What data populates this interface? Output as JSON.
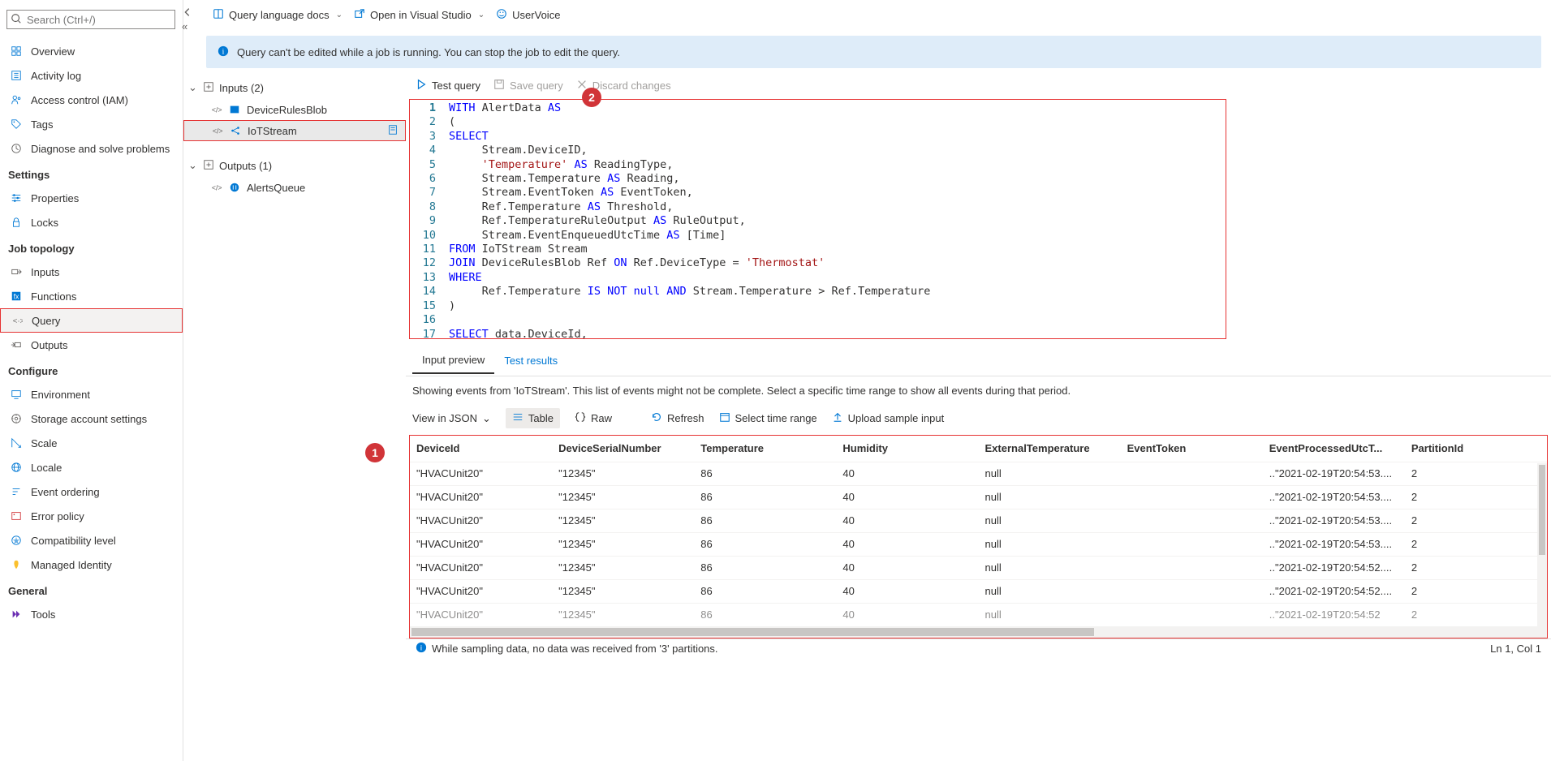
{
  "search": {
    "placeholder": "Search (Ctrl+/)"
  },
  "sidebar": {
    "top": [
      {
        "label": "Overview",
        "icon": "overview"
      },
      {
        "label": "Activity log",
        "icon": "activity"
      },
      {
        "label": "Access control (IAM)",
        "icon": "iam"
      },
      {
        "label": "Tags",
        "icon": "tags"
      },
      {
        "label": "Diagnose and solve problems",
        "icon": "diagnose"
      }
    ],
    "sections": [
      {
        "title": "Settings",
        "items": [
          {
            "label": "Properties",
            "icon": "properties"
          },
          {
            "label": "Locks",
            "icon": "locks"
          }
        ]
      },
      {
        "title": "Job topology",
        "items": [
          {
            "label": "Inputs",
            "icon": "inputs"
          },
          {
            "label": "Functions",
            "icon": "functions"
          },
          {
            "label": "Query",
            "icon": "query",
            "selected": true
          },
          {
            "label": "Outputs",
            "icon": "outputs"
          }
        ]
      },
      {
        "title": "Configure",
        "items": [
          {
            "label": "Environment",
            "icon": "env"
          },
          {
            "label": "Storage account settings",
            "icon": "storage"
          },
          {
            "label": "Scale",
            "icon": "scale"
          },
          {
            "label": "Locale",
            "icon": "locale"
          },
          {
            "label": "Event ordering",
            "icon": "eventorder"
          },
          {
            "label": "Error policy",
            "icon": "errorpolicy"
          },
          {
            "label": "Compatibility level",
            "icon": "compat"
          },
          {
            "label": "Managed Identity",
            "icon": "identity"
          }
        ]
      },
      {
        "title": "General",
        "items": [
          {
            "label": "Tools",
            "icon": "tools"
          }
        ]
      }
    ]
  },
  "topbar": {
    "docs": "Query language docs",
    "openvs": "Open in Visual Studio",
    "uservoice": "UserVoice"
  },
  "banner": {
    "text": "Query can't be edited while a job is running. You can stop the job to edit the query."
  },
  "tree": {
    "inputs_header": "Inputs (2)",
    "inputs": [
      {
        "label": "DeviceRulesBlob",
        "type": "blob"
      },
      {
        "label": "IoTStream",
        "type": "iot",
        "selected": true
      }
    ],
    "outputs_header": "Outputs (1)",
    "outputs": [
      {
        "label": "AlertsQueue",
        "type": "queue"
      }
    ]
  },
  "callouts": {
    "one": "1",
    "two": "2"
  },
  "editor": {
    "test": "Test query",
    "save": "Save query",
    "discard": "Discard changes",
    "line_count": 17,
    "code_lines": [
      {
        "n": 1,
        "html": "<span class='kw'>WITH</span> AlertData <span class='kw'>AS</span>"
      },
      {
        "n": 2,
        "html": "("
      },
      {
        "n": 3,
        "html": "<span class='kw'>SELECT</span>"
      },
      {
        "n": 4,
        "html": "     Stream.DeviceID,"
      },
      {
        "n": 5,
        "html": "     <span class='str'>'Temperature'</span> <span class='kw'>AS</span> ReadingType,"
      },
      {
        "n": 6,
        "html": "     Stream.Temperature <span class='kw'>AS</span> Reading,"
      },
      {
        "n": 7,
        "html": "     Stream.EventToken <span class='kw'>AS</span> EventToken,"
      },
      {
        "n": 8,
        "html": "     Ref.Temperature <span class='kw'>AS</span> Threshold,"
      },
      {
        "n": 9,
        "html": "     Ref.TemperatureRuleOutput <span class='kw'>AS</span> RuleOutput,"
      },
      {
        "n": 10,
        "html": "     Stream.EventEnqueuedUtcTime <span class='kw'>AS</span> [Time]"
      },
      {
        "n": 11,
        "html": "<span class='kw'>FROM</span> IoTStream Stream"
      },
      {
        "n": 12,
        "html": "<span class='kw'>JOIN</span> DeviceRulesBlob Ref <span class='kw'>ON</span> Ref.DeviceType = <span class='str'>'Thermostat'</span>"
      },
      {
        "n": 13,
        "html": "<span class='kw'>WHERE</span>"
      },
      {
        "n": 14,
        "html": "     Ref.Temperature <span class='kw'>IS NOT</span> <span class='kw'>null</span> <span class='kw'>AND</span> Stream.Temperature &gt; Ref.Temperature"
      },
      {
        "n": 15,
        "html": ")"
      },
      {
        "n": 16,
        "html": ""
      },
      {
        "n": 17,
        "html": "<span class='kw'>SELECT</span> data.DeviceId,"
      }
    ]
  },
  "tabs": {
    "input_preview": "Input preview",
    "test_results": "Test results"
  },
  "preview": {
    "message": "Showing events from 'IoTStream'. This list of events might not be complete. Select a specific time range to show all events during that period.",
    "view_json": "View in JSON",
    "table": "Table",
    "raw": "Raw",
    "refresh": "Refresh",
    "select_time": "Select time range",
    "upload": "Upload sample input",
    "columns": [
      "DeviceId",
      "DeviceSerialNumber",
      "Temperature",
      "Humidity",
      "ExternalTemperature",
      "EventToken",
      "EventProcessedUtcT...",
      "PartitionId"
    ],
    "col_widths": [
      "130",
      "130",
      "130",
      "130",
      "130",
      "130",
      "130",
      "90"
    ],
    "rows": [
      [
        "\"HVACUnit20\"",
        "\"12345\"",
        "86",
        "40",
        "null",
        "",
        "\"2021-02-19T20:54:53....",
        "2"
      ],
      [
        "\"HVACUnit20\"",
        "\"12345\"",
        "86",
        "40",
        "null",
        "",
        "\"2021-02-19T20:54:53....",
        "2"
      ],
      [
        "\"HVACUnit20\"",
        "\"12345\"",
        "86",
        "40",
        "null",
        "",
        "\"2021-02-19T20:54:53....",
        "2"
      ],
      [
        "\"HVACUnit20\"",
        "\"12345\"",
        "86",
        "40",
        "null",
        "",
        "\"2021-02-19T20:54:53....",
        "2"
      ],
      [
        "\"HVACUnit20\"",
        "\"12345\"",
        "86",
        "40",
        "null",
        "",
        "\"2021-02-19T20:54:52....",
        "2"
      ],
      [
        "\"HVACUnit20\"",
        "\"12345\"",
        "86",
        "40",
        "null",
        "",
        "\"2021-02-19T20:54:52....",
        "2"
      ],
      [
        "\"HVACUnit20\"",
        "\"12345\"",
        "86",
        "40",
        "null",
        "",
        "\"2021-02-19T20:54:52",
        "2"
      ]
    ]
  },
  "status": {
    "left": "While sampling data, no data was received from '3' partitions.",
    "right": "Ln 1, Col 1"
  },
  "colors": {
    "azure_blue": "#0078d4",
    "danger": "#d13438",
    "highlight_border": "#e63232"
  }
}
